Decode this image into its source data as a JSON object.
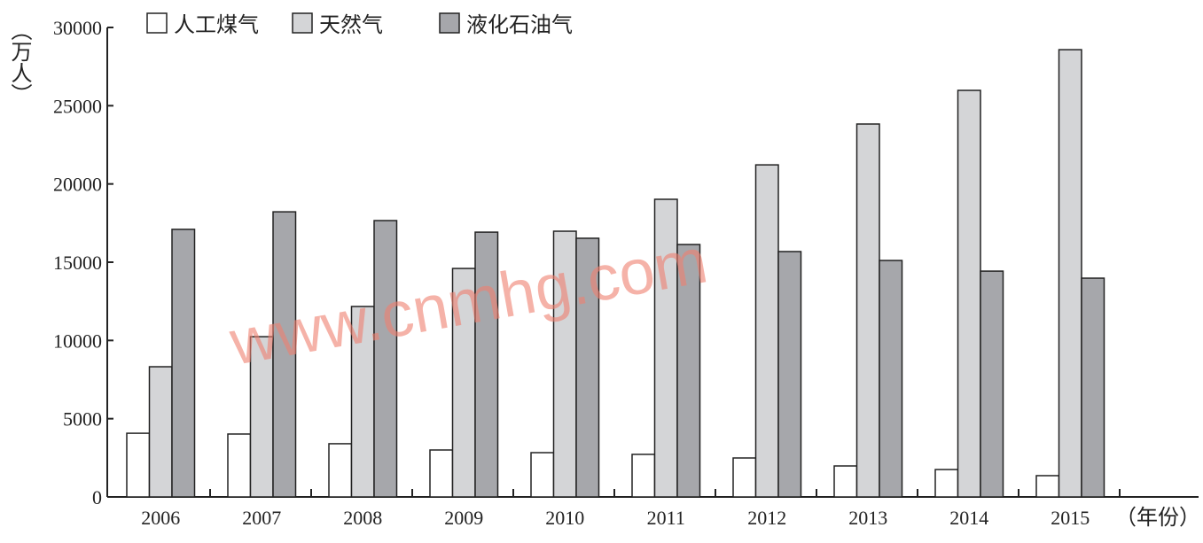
{
  "chart_data": {
    "type": "bar",
    "title": "",
    "xlabel": "（年份）",
    "ylabel": "（万人）",
    "ylim": [
      0,
      30000
    ],
    "yticks": [
      0,
      5000,
      10000,
      15000,
      20000,
      25000,
      30000
    ],
    "grid": false,
    "legend_position": "top-left",
    "categories": [
      "2006",
      "2007",
      "2008",
      "2009",
      "2010",
      "2011",
      "2012",
      "2013",
      "2014",
      "2015"
    ],
    "series": [
      {
        "name": "人工煤气",
        "color": "#ffffff",
        "values": [
          4070,
          4020,
          3400,
          3000,
          2830,
          2720,
          2490,
          1980,
          1750,
          1360
        ]
      },
      {
        "name": "天然气",
        "color": "#d4d5d7",
        "values": [
          8320,
          10240,
          12170,
          14600,
          16980,
          19020,
          21220,
          23830,
          25980,
          28580
        ]
      },
      {
        "name": "液化石油气",
        "color": "#a6a7ab",
        "values": [
          17100,
          18220,
          17660,
          16920,
          16530,
          16130,
          15680,
          15110,
          14430,
          13980
        ]
      }
    ]
  },
  "watermark": "www.cnmhg.com"
}
